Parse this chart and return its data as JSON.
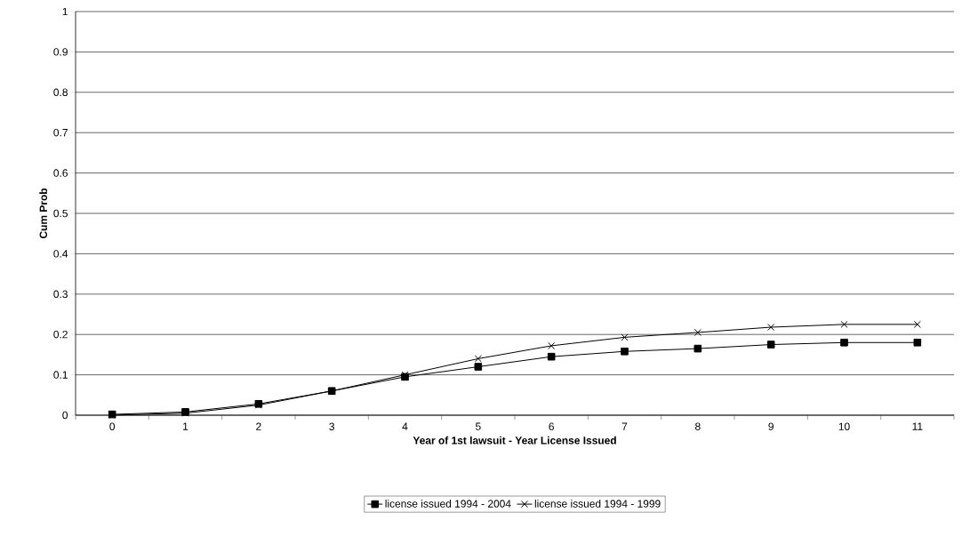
{
  "chart_data": {
    "type": "line",
    "xlabel": "Year of 1st lawsuit - Year License Issued",
    "ylabel": "Cum Prob",
    "categories": [
      "0",
      "1",
      "2",
      "3",
      "4",
      "5",
      "6",
      "7",
      "8",
      "9",
      "10",
      "11"
    ],
    "series": [
      {
        "name": "license issued 1994 - 2004",
        "color": "#000000",
        "marker": "square",
        "values": [
          0.002,
          0.008,
          0.028,
          0.06,
          0.095,
          0.12,
          0.145,
          0.158,
          0.165,
          0.175,
          0.18,
          0.18
        ]
      },
      {
        "name": "license issued 1994 - 1999",
        "color": "#000000",
        "marker": "cross",
        "values": [
          0,
          0.005,
          0.025,
          0.06,
          0.1,
          0.14,
          0.172,
          0.193,
          0.205,
          0.218,
          0.225,
          0.225
        ]
      }
    ],
    "ylim": [
      0,
      1
    ],
    "yticks": [
      0,
      0.1,
      0.2,
      0.3,
      0.4,
      0.5,
      0.6,
      0.7,
      0.8,
      0.9,
      1
    ],
    "grid": "y",
    "legend": "bottom"
  }
}
